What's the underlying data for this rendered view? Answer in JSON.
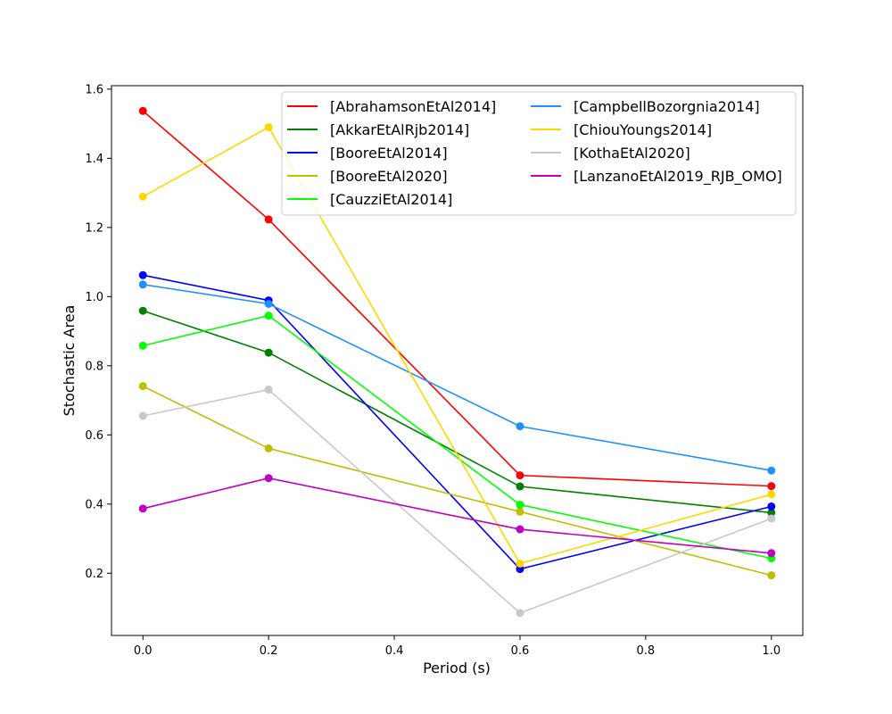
{
  "chart_data": {
    "type": "line",
    "title": "",
    "xlabel": "Period (s)",
    "ylabel": "Stochastic Area",
    "x": [
      0.0,
      0.2,
      0.6,
      1.0
    ],
    "xlim": [
      -0.05,
      1.05
    ],
    "ylim": [
      0.02,
      1.61
    ],
    "xticks": [
      0.0,
      0.2,
      0.4,
      0.6,
      0.8,
      1.0
    ],
    "xtick_labels": [
      "0.0",
      "0.2",
      "0.4",
      "0.6",
      "0.8",
      "1.0"
    ],
    "yticks": [
      0.2,
      0.4,
      0.6,
      0.8,
      1.0,
      1.2,
      1.4,
      1.6
    ],
    "ytick_labels": [
      "0.2",
      "0.4",
      "0.6",
      "0.8",
      "1.0",
      "1.2",
      "1.4",
      "1.6"
    ],
    "grid": false,
    "legend_position": "top-right",
    "series": [
      {
        "name": "[AbrahamsonEtAl2014]",
        "color": "#ff0000",
        "values": [
          1.537,
          1.223,
          0.483,
          0.452
        ]
      },
      {
        "name": "[AkkarEtAlRjb2014]",
        "color": "#008000",
        "values": [
          0.959,
          0.838,
          0.451,
          0.375
        ]
      },
      {
        "name": "[BooreEtAl2014]",
        "color": "#0000ff",
        "values": [
          1.062,
          0.989,
          0.212,
          0.393
        ]
      },
      {
        "name": "[BooreEtAl2020]",
        "color": "#bfbf00",
        "values": [
          0.741,
          0.561,
          0.378,
          0.194
        ]
      },
      {
        "name": "[CauzziEtAl2014]",
        "color": "#00ff00",
        "values": [
          0.858,
          0.945,
          0.398,
          0.243
        ]
      },
      {
        "name": "[CampbellBozorgnia2014]",
        "color": "#1e90ff",
        "values": [
          1.035,
          0.979,
          0.625,
          0.497
        ]
      },
      {
        "name": "[ChiouYoungs2014]",
        "color": "#ffd700",
        "values": [
          1.289,
          1.49,
          0.228,
          0.428
        ]
      },
      {
        "name": "[KothaEtAl2020]",
        "color": "#c8c8c8",
        "values": [
          0.655,
          0.731,
          0.085,
          0.358
        ]
      },
      {
        "name": "[LanzanoEtAl2019_RJB_OMO]",
        "color": "#bf00bf",
        "values": [
          0.387,
          0.475,
          0.327,
          0.258
        ]
      }
    ]
  }
}
